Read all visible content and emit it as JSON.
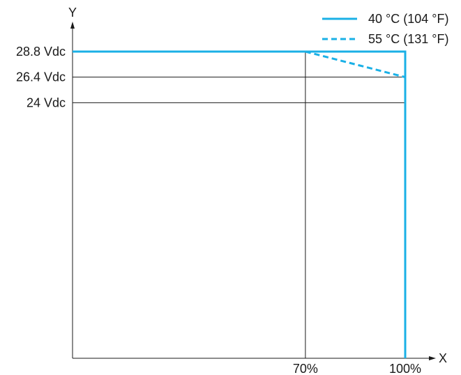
{
  "chart_data": {
    "type": "line",
    "xlabel": "X",
    "ylabel": "Y",
    "x_ticks": [
      {
        "value": 70,
        "label": "70%"
      },
      {
        "value": 100,
        "label": "100%"
      }
    ],
    "y_ticks": [
      {
        "value": 28.8,
        "label": "28.8 Vdc"
      },
      {
        "value": 26.4,
        "label": "26.4 Vdc"
      },
      {
        "value": 24,
        "label": "24 Vdc"
      }
    ],
    "xlim": [
      0,
      100
    ],
    "ylim": [
      0,
      28.8
    ],
    "legend_position": "top-right",
    "series": [
      {
        "name": "40 °C (104 °F)",
        "style": "solid",
        "color": "#1ab0e6",
        "x": [
          0,
          100,
          100
        ],
        "y": [
          28.8,
          28.8,
          0
        ]
      },
      {
        "name": "55 °C (131 °F)",
        "style": "dashed",
        "color": "#1ab0e6",
        "x": [
          70,
          100
        ],
        "y": [
          28.8,
          26.4
        ]
      }
    ]
  }
}
